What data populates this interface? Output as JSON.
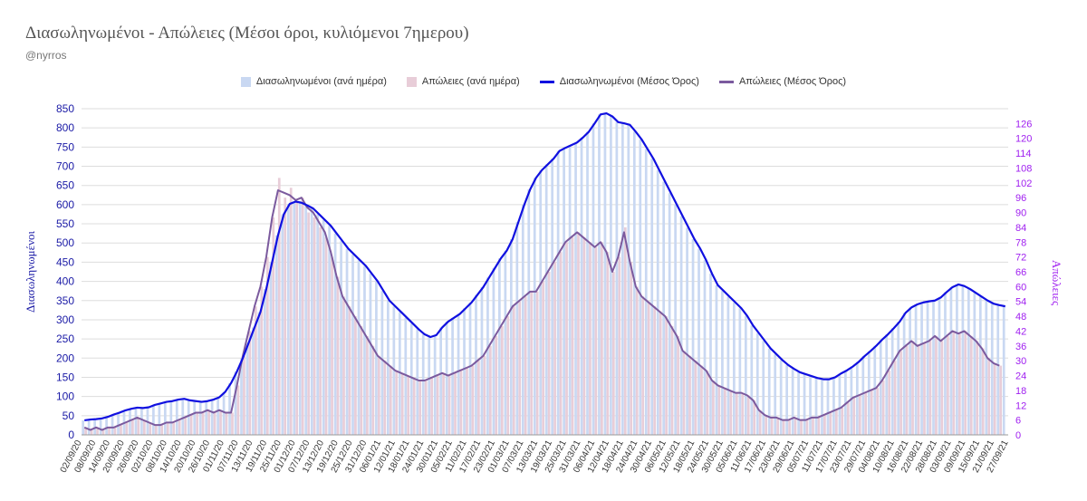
{
  "title": "Διασωληνωμένοι - Απώλειες (Μέσοι όροι, κυλιόμενοι 7ημερου)",
  "subtitle": "@nyrros",
  "colors": {
    "intubated_bar": "#c9d8f2",
    "deaths_bar": "#e8cdd8",
    "intubated_line": "#1010e0",
    "deaths_line": "#7b5a9e",
    "left_axis": "#1a1aa6",
    "right_axis": "#a020f0",
    "grid": "#dddddd"
  },
  "chart_data": {
    "type": "bar",
    "title": "Διασωληνωμένοι - Απώλειες (Μέσοι όροι, κυλιόμενοι 7ημερου)",
    "ylabel": "Διασωληνωμένοι",
    "y2label": "Απώλειες",
    "ylim": [
      0,
      850
    ],
    "y2lim": [
      0,
      132
    ],
    "yticks": [
      0,
      50,
      100,
      150,
      200,
      250,
      300,
      350,
      400,
      450,
      500,
      550,
      600,
      650,
      700,
      750,
      800,
      850
    ],
    "y2ticks": [
      0,
      6,
      12,
      18,
      24,
      30,
      36,
      42,
      48,
      54,
      60,
      66,
      72,
      78,
      84,
      90,
      96,
      102,
      108,
      114,
      120,
      126
    ],
    "grid": "horizontal",
    "legend_position": "top",
    "x_start": "02/09/20",
    "x_end": "27/09/21",
    "x_tick_labels": [
      "02/09/20",
      "08/09/20",
      "14/09/20",
      "20/09/20",
      "26/09/20",
      "02/10/20",
      "08/10/20",
      "14/10/20",
      "20/10/20",
      "26/10/20",
      "01/11/20",
      "07/11/20",
      "13/11/20",
      "19/11/20",
      "25/11/20",
      "01/12/20",
      "07/12/20",
      "13/12/20",
      "19/12/20",
      "25/12/20",
      "31/12/20",
      "06/01/21",
      "12/01/21",
      "18/01/21",
      "24/01/21",
      "30/01/21",
      "05/02/21",
      "11/02/21",
      "17/02/21",
      "23/02/21",
      "01/03/21",
      "07/03/21",
      "13/03/21",
      "19/03/21",
      "25/03/21",
      "31/03/21",
      "06/04/21",
      "12/04/21",
      "18/04/21",
      "24/04/21",
      "30/04/21",
      "06/05/21",
      "12/05/21",
      "18/05/21",
      "24/05/21",
      "30/05/21",
      "05/06/21",
      "11/06/21",
      "17/06/21",
      "23/06/21",
      "29/06/21",
      "05/07/21",
      "11/07/21",
      "17/07/21",
      "23/07/21",
      "29/07/21",
      "04/08/21",
      "10/08/21",
      "16/08/21",
      "22/08/21",
      "28/08/21",
      "03/09/21",
      "09/09/21",
      "15/09/21",
      "21/09/21",
      "27/09/21"
    ],
    "series": [
      {
        "name": "Διασωληνωμένοι (ανά ημέρα)",
        "axis": "left",
        "type": "bar",
        "values": [
          38,
          40,
          41,
          43,
          47,
          53,
          58,
          64,
          68,
          71,
          70,
          72,
          78,
          82,
          86,
          88,
          92,
          94,
          90,
          88,
          86,
          88,
          92,
          98,
          112,
          135,
          165,
          200,
          240,
          280,
          320,
          380,
          450,
          520,
          575,
          602,
          608,
          605,
          598,
          590,
          575,
          560,
          545,
          525,
          505,
          485,
          470,
          455,
          440,
          420,
          400,
          375,
          350,
          335,
          320,
          305,
          290,
          275,
          262,
          255,
          260,
          280,
          295,
          305,
          315,
          330,
          345,
          365,
          385,
          410,
          435,
          460,
          480,
          510,
          555,
          600,
          640,
          670,
          690,
          705,
          720,
          740,
          748,
          755,
          762,
          775,
          790,
          812,
          835,
          838,
          830,
          815,
          812,
          808,
          790,
          770,
          745,
          720,
          690,
          660,
          630,
          600,
          570,
          540,
          510,
          485,
          455,
          420,
          390,
          375,
          360,
          345,
          330,
          310,
          285,
          265,
          245,
          225,
          210,
          195,
          182,
          172,
          163,
          158,
          153,
          148,
          145,
          145,
          150,
          160,
          168,
          178,
          190,
          205,
          218,
          232,
          248,
          262,
          278,
          295,
          318,
          332,
          340,
          345,
          348,
          350,
          358,
          372,
          385,
          392,
          388,
          380,
          370,
          360,
          350,
          342,
          338,
          335
        ]
      },
      {
        "name": "Απώλειες (ανά ημέρα)",
        "axis": "right",
        "type": "bar",
        "values": [
          3,
          2,
          3,
          2,
          3,
          3,
          4,
          5,
          6,
          7,
          6,
          5,
          4,
          4,
          5,
          5,
          6,
          7,
          8,
          9,
          9,
          10,
          9,
          10,
          9,
          9,
          20,
          32,
          42,
          52,
          60,
          72,
          88,
          104,
          96,
          100,
          94,
          96,
          90,
          88,
          84,
          80,
          72,
          64,
          56,
          52,
          48,
          44,
          40,
          36,
          32,
          30,
          28,
          26,
          25,
          24,
          23,
          22,
          22,
          23,
          24,
          25,
          24,
          25,
          26,
          27,
          28,
          30,
          32,
          36,
          40,
          44,
          48,
          52,
          54,
          56,
          58,
          58,
          62,
          66,
          70,
          74,
          78,
          80,
          82,
          80,
          78,
          76,
          78,
          74,
          66,
          72,
          84,
          70,
          60,
          56,
          54,
          52,
          50,
          48,
          44,
          40,
          34,
          32,
          30,
          28,
          26,
          22,
          20,
          19,
          18,
          17,
          17,
          16,
          14,
          10,
          8,
          7,
          7,
          6,
          6,
          7,
          6,
          6,
          7,
          7,
          8,
          9,
          10,
          11,
          13,
          15,
          16,
          17,
          18,
          19,
          22,
          26,
          30,
          34,
          36,
          38,
          36,
          37,
          38,
          40,
          38,
          40,
          42,
          41,
          42,
          40,
          38,
          35,
          31,
          29,
          28
        ]
      },
      {
        "name": "Διασωληνωμένοι (Μέσος Όρος)",
        "axis": "left",
        "type": "line",
        "values": [
          38,
          40,
          41,
          43,
          47,
          53,
          58,
          64,
          68,
          71,
          70,
          72,
          78,
          82,
          86,
          88,
          92,
          94,
          90,
          88,
          86,
          88,
          92,
          98,
          112,
          135,
          165,
          200,
          240,
          280,
          320,
          380,
          450,
          520,
          575,
          602,
          608,
          605,
          598,
          590,
          575,
          560,
          545,
          525,
          505,
          485,
          470,
          455,
          440,
          420,
          400,
          375,
          350,
          335,
          320,
          305,
          290,
          275,
          262,
          255,
          260,
          280,
          295,
          305,
          315,
          330,
          345,
          365,
          385,
          410,
          435,
          460,
          480,
          510,
          555,
          600,
          640,
          670,
          690,
          705,
          720,
          740,
          748,
          755,
          762,
          775,
          790,
          812,
          835,
          838,
          830,
          815,
          812,
          808,
          790,
          770,
          745,
          720,
          690,
          660,
          630,
          600,
          570,
          540,
          510,
          485,
          455,
          420,
          390,
          375,
          360,
          345,
          330,
          310,
          285,
          265,
          245,
          225,
          210,
          195,
          182,
          172,
          163,
          158,
          153,
          148,
          145,
          145,
          150,
          160,
          168,
          178,
          190,
          205,
          218,
          232,
          248,
          262,
          278,
          295,
          318,
          332,
          340,
          345,
          348,
          350,
          358,
          372,
          385,
          392,
          388,
          380,
          370,
          360,
          350,
          342,
          338,
          335
        ]
      },
      {
        "name": "Απώλειες (Μέσος Όρος)",
        "axis": "right",
        "type": "line",
        "values": [
          3,
          2,
          3,
          2,
          3,
          3,
          4,
          5,
          6,
          7,
          6,
          5,
          4,
          4,
          5,
          5,
          6,
          7,
          8,
          9,
          9,
          10,
          9,
          10,
          9,
          9,
          20,
          32,
          42,
          52,
          60,
          72,
          88,
          99,
          98,
          97,
          95,
          96,
          92,
          90,
          86,
          82,
          74,
          64,
          56,
          52,
          48,
          44,
          40,
          36,
          32,
          30,
          28,
          26,
          25,
          24,
          23,
          22,
          22,
          23,
          24,
          25,
          24,
          25,
          26,
          27,
          28,
          30,
          32,
          36,
          40,
          44,
          48,
          52,
          54,
          56,
          58,
          58,
          62,
          66,
          70,
          74,
          78,
          80,
          82,
          80,
          78,
          76,
          78,
          74,
          66,
          72,
          82,
          70,
          60,
          56,
          54,
          52,
          50,
          48,
          44,
          40,
          34,
          32,
          30,
          28,
          26,
          22,
          20,
          19,
          18,
          17,
          17,
          16,
          14,
          10,
          8,
          7,
          7,
          6,
          6,
          7,
          6,
          6,
          7,
          7,
          8,
          9,
          10,
          11,
          13,
          15,
          16,
          17,
          18,
          19,
          22,
          26,
          30,
          34,
          36,
          38,
          36,
          37,
          38,
          40,
          38,
          40,
          42,
          41,
          42,
          40,
          38,
          35,
          31,
          29,
          28
        ]
      }
    ]
  }
}
